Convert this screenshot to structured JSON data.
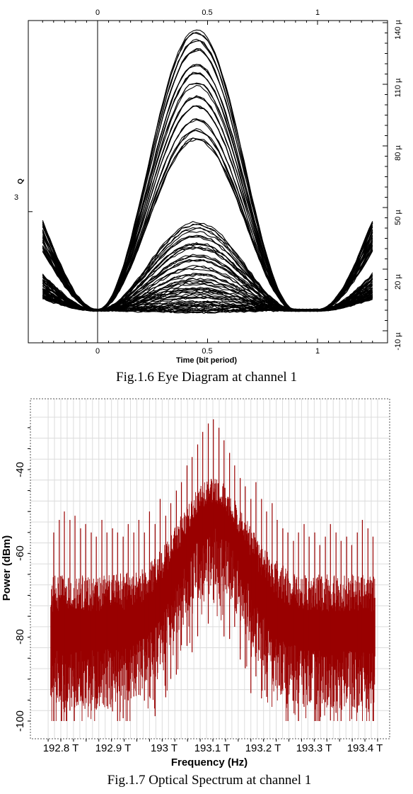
{
  "chart_data": [
    {
      "type": "line",
      "caption": "Fig.1.6 Eye Diagram at channel 1",
      "xlabel": "Time (bit period)",
      "ylabel_left": "Q",
      "x_ticks_bottom": [
        "0",
        "0.5",
        "1"
      ],
      "x_ticks_top": [
        "0",
        "0.5",
        "1"
      ],
      "y_ticks_left": [
        "3"
      ],
      "y_ticks_right": [
        "-10 µ",
        "20 µ",
        "50 µ",
        "80 µ",
        "110 µ",
        "140 µ"
      ],
      "x_range": [
        -0.3,
        1.25
      ],
      "y_range_right": [
        -10,
        140
      ],
      "y_unit_right": "µ",
      "series_color": "#000000",
      "series": [
        {
          "peak_levels": [
            136,
            131,
            127,
            120,
            115,
            110,
            104,
            100,
            93,
            88,
            84
          ]
        },
        {
          "peak_levels": [
            42,
            39,
            36,
            33,
            30,
            27,
            24,
            21
          ]
        },
        {
          "peak_levels": [
            17,
            15,
            13,
            11,
            9,
            8
          ]
        },
        {
          "peak_levels": [
            6,
            4,
            3,
            2,
            1,
            0,
            -1
          ]
        }
      ],
      "crossing_level": 0
    },
    {
      "type": "line",
      "caption": "Fig.1.7 Optical Spectrum at channel 1",
      "xlabel": "Frequency (Hz)",
      "ylabel": "Power (dBm)",
      "x_ticks": [
        "192.8 T",
        "192.9 T",
        "193 T",
        "193.1 T",
        "193.2 T",
        "193.3 T",
        "193.4 T"
      ],
      "y_ticks": [
        "-40",
        "-60",
        "-80",
        "-100"
      ],
      "x_range": [
        192.76,
        193.44
      ],
      "y_range": [
        -102,
        -25
      ],
      "x_unit": "THz",
      "grid": true,
      "series_color": "#990000",
      "series": [
        {
          "center_frequency": 193.1,
          "carrier_peak": -29,
          "noise_floor_mean": -74,
          "tone_spacing": 0.0105,
          "tone_peaks": [
            [
              192.786,
              -55
            ],
            [
              192.797,
              -52
            ],
            [
              192.807,
              -50
            ],
            [
              192.818,
              -52
            ],
            [
              192.828,
              -51
            ],
            [
              192.839,
              -54
            ],
            [
              192.849,
              -53
            ],
            [
              192.86,
              -55
            ],
            [
              192.87,
              -56
            ],
            [
              192.881,
              -52
            ],
            [
              192.891,
              -55
            ],
            [
              192.902,
              -54
            ],
            [
              192.912,
              -55
            ],
            [
              192.923,
              -56
            ],
            [
              192.933,
              -53
            ],
            [
              192.944,
              -55
            ],
            [
              192.954,
              -52
            ],
            [
              192.965,
              -55
            ],
            [
              192.975,
              -50
            ],
            [
              192.986,
              -53
            ],
            [
              192.996,
              -47
            ],
            [
              193.007,
              -51
            ],
            [
              193.017,
              -48
            ],
            [
              193.028,
              -45
            ],
            [
              193.038,
              -43
            ],
            [
              193.049,
              -39
            ],
            [
              193.059,
              -37
            ],
            [
              193.07,
              -34
            ],
            [
              193.08,
              -31
            ],
            [
              193.091,
              -29
            ],
            [
              193.101,
              -28
            ],
            [
              193.112,
              -30
            ],
            [
              193.122,
              -33
            ],
            [
              193.133,
              -36
            ],
            [
              193.143,
              -39
            ],
            [
              193.154,
              -42
            ],
            [
              193.164,
              -44
            ],
            [
              193.175,
              -47
            ],
            [
              193.185,
              -43
            ],
            [
              193.196,
              -47
            ],
            [
              193.206,
              -50
            ],
            [
              193.217,
              -48
            ],
            [
              193.227,
              -52
            ],
            [
              193.238,
              -54
            ],
            [
              193.248,
              -55
            ],
            [
              193.259,
              -57
            ],
            [
              193.269,
              -55
            ],
            [
              193.28,
              -53
            ],
            [
              193.29,
              -56
            ],
            [
              193.301,
              -55
            ],
            [
              193.311,
              -58
            ],
            [
              193.322,
              -56
            ],
            [
              193.332,
              -53
            ],
            [
              193.343,
              -55
            ],
            [
              193.353,
              -57
            ],
            [
              193.364,
              -56
            ],
            [
              193.374,
              -58
            ],
            [
              193.385,
              -55
            ],
            [
              193.395,
              -52
            ],
            [
              193.406,
              -54
            ],
            [
              193.416,
              -56
            ]
          ]
        }
      ]
    }
  ]
}
